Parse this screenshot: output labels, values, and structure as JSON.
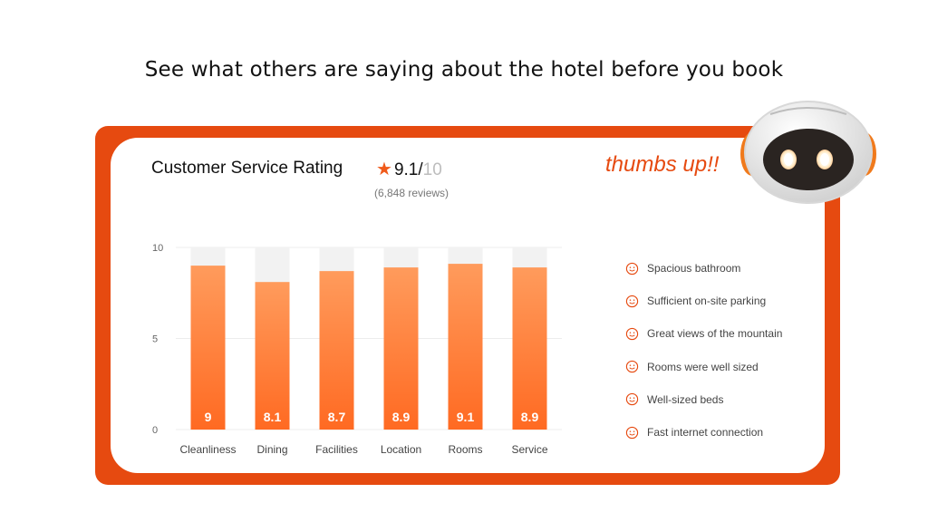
{
  "headline": "See what others are saying about the hotel before you book",
  "card": {
    "title": "Customer Service Rating",
    "rating_value": "9.1/",
    "rating_max": "10",
    "reviews": "(6,848 reviews)",
    "callout": "thumbs up!!"
  },
  "colors": {
    "accent": "#e64a10",
    "bar_top": "#ff9b5c",
    "bar_bottom": "#ff6a22",
    "bar_track": "#f2f2f2"
  },
  "chart_data": {
    "type": "bar",
    "categories": [
      "Cleanliness",
      "Dining",
      "Facilities",
      "Location",
      "Rooms",
      "Service"
    ],
    "values": [
      9,
      8.1,
      8.7,
      8.9,
      9.1,
      8.9
    ],
    "value_labels": [
      "9",
      "8.1",
      "8.7",
      "8.9",
      "9.1",
      "8.9"
    ],
    "ylim": [
      0,
      10
    ],
    "yticks": [
      "0",
      "5",
      "10"
    ],
    "grid": true
  },
  "reasons": [
    {
      "icon": "smile-icon",
      "text": "Spacious bathroom"
    },
    {
      "icon": "smile-icon",
      "text": "Sufficient on-site parking"
    },
    {
      "icon": "smile-icon",
      "text": "Great views of the mountain"
    },
    {
      "icon": "smile-icon",
      "text": "Rooms were well sized"
    },
    {
      "icon": "smile-icon",
      "text": "Well-sized beds"
    },
    {
      "icon": "smile-icon",
      "text": "Fast internet connection"
    }
  ]
}
